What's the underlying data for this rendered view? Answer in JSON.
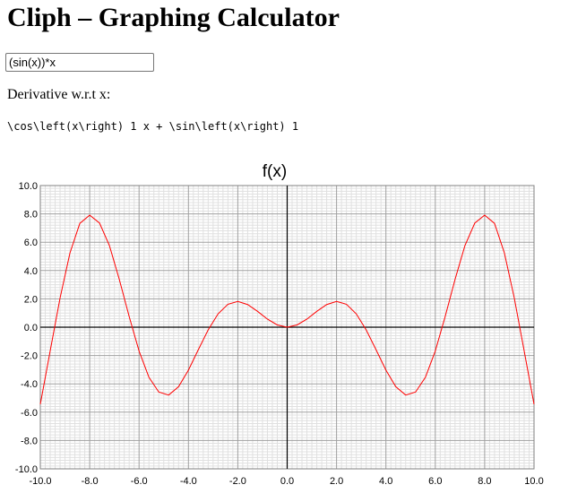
{
  "page": {
    "title": "Cliph – Graphing Calculator"
  },
  "expression_input": {
    "value": "(sin(x))*x"
  },
  "derivative": {
    "label": "Derivative w.r.t x:",
    "output": "\\cos\\left(x\\right) 1 x + \\sin\\left(x\\right) 1"
  },
  "chart_data": {
    "type": "line",
    "title": "f(x)",
    "xlabel": "",
    "ylabel": "",
    "xlim": [
      -10,
      10
    ],
    "ylim": [
      -10,
      10
    ],
    "grid": true,
    "x_ticks": [
      -10,
      -8,
      -6,
      -4,
      -2,
      0,
      2,
      4,
      6,
      8,
      10
    ],
    "y_ticks": [
      -10,
      -8,
      -6,
      -4,
      -2,
      0,
      2,
      4,
      6,
      8,
      10
    ],
    "x_tick_labels": [
      "-10.0",
      "-8.0",
      "-6.0",
      "-4.0",
      "-2.0",
      "0.0",
      "2.0",
      "4.0",
      "6.0",
      "8.0",
      "10.0"
    ],
    "y_tick_labels": [
      "-10.0",
      "-8.0",
      "-6.0",
      "-4.0",
      "-2.0",
      "0.0",
      "2.0",
      "4.0",
      "6.0",
      "8.0",
      "10.0"
    ],
    "series": [
      {
        "color": "#ff0000",
        "x": [
          -10,
          -9.6,
          -9.2,
          -8.8,
          -8.4,
          -8,
          -7.6,
          -7.2,
          -6.8,
          -6.4,
          -6,
          -5.6,
          -5.2,
          -4.8,
          -4.4,
          -4,
          -3.6,
          -3.2,
          -2.8,
          -2.4,
          -2,
          -1.6,
          -1.2,
          -0.8,
          -0.4,
          0,
          0.4,
          0.8,
          1.2,
          1.6,
          2,
          2.4,
          2.8,
          3.2,
          3.6,
          4,
          4.4,
          4.8,
          5.2,
          5.6,
          6,
          6.4,
          6.8,
          7.2,
          7.6,
          8,
          8.4,
          8.8,
          9.2,
          9.6,
          10
        ],
        "y": [
          -5.44,
          -1.67,
          2.06,
          5.24,
          7.33,
          7.91,
          7.35,
          5.76,
          3.37,
          0.75,
          -1.68,
          -3.54,
          -4.58,
          -4.79,
          -4.2,
          -3.03,
          -1.59,
          -0.19,
          0.94,
          1.62,
          1.82,
          1.6,
          1.12,
          0.57,
          0.16,
          0,
          0.16,
          0.57,
          1.12,
          1.6,
          1.82,
          1.62,
          0.94,
          -0.19,
          -1.59,
          -3.03,
          -4.2,
          -4.79,
          -4.58,
          -3.54,
          -1.68,
          0.75,
          3.37,
          5.76,
          7.35,
          7.91,
          7.33,
          5.24,
          2.06,
          -1.67,
          -5.44
        ]
      }
    ]
  },
  "colors": {
    "curve": "#ff0000",
    "axis": "#000000",
    "grid_major": "#a0a0a0",
    "grid_minor": "#e0e0e0"
  }
}
